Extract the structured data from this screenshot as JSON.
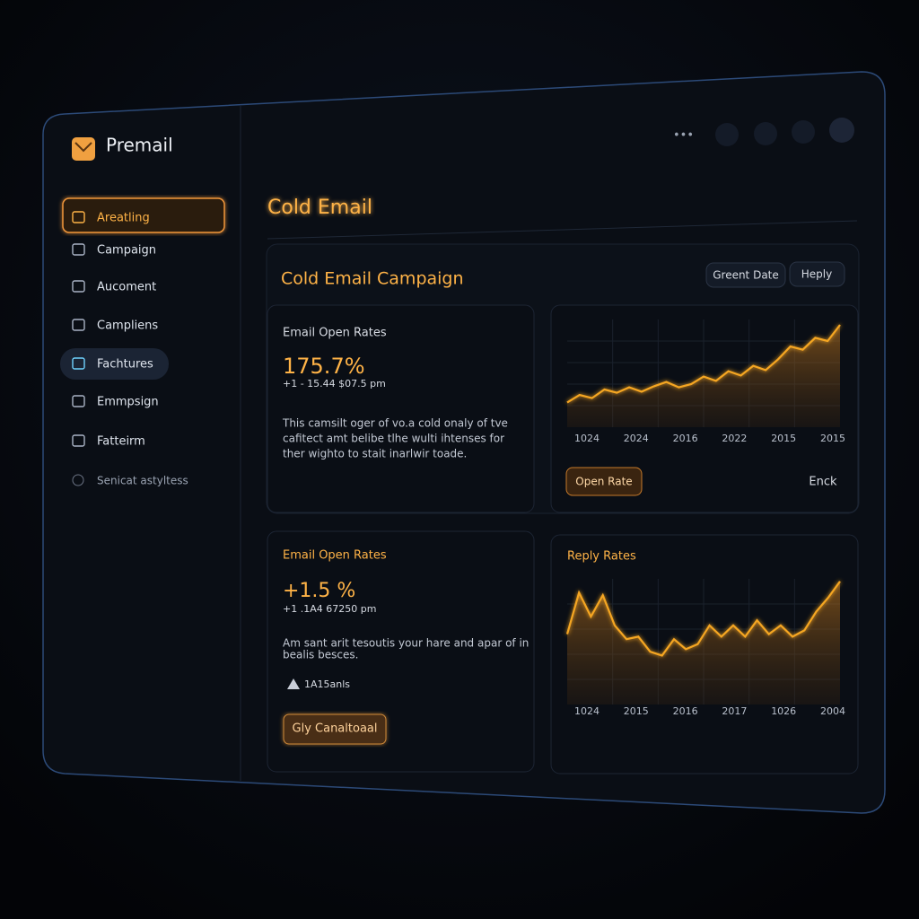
{
  "sidebar": {
    "brand": "Premail",
    "nav": [
      "Areatling",
      "Campaign",
      "Aucoment",
      "Campliens",
      "Fachtures",
      "Emmpsign",
      "Fatteirm"
    ],
    "footer": "Senicat astyltess"
  },
  "header": {
    "title": "Cold Email"
  },
  "panel": {
    "title": "Cold Email Campaign",
    "buttons": [
      "Greent Date",
      "Heply"
    ]
  },
  "cards": [
    {
      "title": "Email Open Rates",
      "value": "175.7%",
      "meta": "+1 - 15.44   $07.5 pm",
      "description": [
        "This camsilt oger of vo.a cold onaly of tve",
        "cafitect amt belibe tlhe wulti ihtenses for",
        "ther wighto to stait inarlwir toade."
      ]
    },
    {
      "title": "Email Open Rates",
      "value": "+1.5 %",
      "meta": "+1 .1A4   67250 pm",
      "description": [
        "Am sant arit tesoutis your hare and apar of in",
        "bealis besces."
      ],
      "badge": "1A15anls",
      "button": "Gly Canaltoaal"
    }
  ],
  "chart_buttons": [
    "Open Rate",
    "Enck"
  ],
  "chart_data": [
    {
      "type": "line",
      "color": "#f5a623",
      "ylim": [
        0,
        100
      ],
      "xtick_labels": [
        "1024",
        "2024",
        "2016",
        "2022",
        "2015",
        "2015"
      ],
      "values": [
        23,
        30,
        27,
        35,
        32,
        37,
        33,
        38,
        42,
        37,
        40,
        47,
        43,
        52,
        48,
        57,
        53,
        63,
        75,
        72,
        83,
        80,
        95
      ]
    },
    {
      "type": "line",
      "title": "Reply Rates",
      "color": "#f5a623",
      "ylim": [
        0,
        100
      ],
      "xtick_labels": [
        "1024",
        "2015",
        "2016",
        "2017",
        "1026",
        "2004"
      ],
      "values": [
        56,
        89,
        70,
        87,
        63,
        52,
        54,
        42,
        39,
        52,
        44,
        48,
        63,
        54,
        63,
        54,
        67,
        56,
        63,
        54,
        59,
        74,
        85,
        98
      ]
    }
  ]
}
